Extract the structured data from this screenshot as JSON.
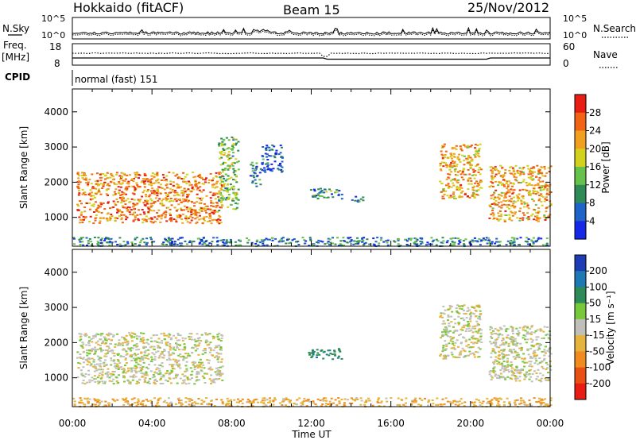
{
  "header": {
    "station": "Hokkaido (fitACF)",
    "beam": "Beam 15",
    "date": "25/Nov/2012"
  },
  "labels": {
    "nsky": "N.Sky",
    "nsearch": "N.Search",
    "freq": "Freq.",
    "mhz": "[MHz]",
    "nave": "Nave",
    "cpid": "CPID",
    "cpid_value": "normal (fast) 151"
  },
  "strip_ticks": {
    "noise_left": [
      "10^5",
      "10^0"
    ],
    "noise_right": [
      "10^5",
      "10^0"
    ],
    "freq_left": [
      "18",
      "8"
    ],
    "nave_right": [
      "60",
      "0"
    ]
  },
  "chart_data": [
    {
      "type": "heatmap",
      "panel": "power",
      "ylabel": "Slant Range [km]",
      "xlabel": "Time UT",
      "xticks": [
        "00:00",
        "04:00",
        "08:00",
        "12:00",
        "16:00",
        "20:00",
        "00:00"
      ],
      "xlim_hours": [
        0,
        24
      ],
      "yticks": [
        "1000",
        "2000",
        "3000",
        "4000"
      ],
      "ylim": [
        180,
        4650
      ],
      "colorbar": {
        "label": "Power [dB]",
        "ticks": [
          "4",
          "8",
          "12",
          "16",
          "20",
          "24",
          "28"
        ],
        "range": [
          0,
          32
        ],
        "colors": [
          "#1428e6",
          "#1e64c8",
          "#2e8b57",
          "#66c24a",
          "#d2d21e",
          "#f0a01e",
          "#f06414",
          "#e61e14"
        ]
      },
      "regions": [
        {
          "name": "evening-arc",
          "t": [
            0.2,
            7.5
          ],
          "r": [
            850,
            2300
          ],
          "level": 24
        },
        {
          "name": "late-evening-arc",
          "t": [
            7.3,
            8.3
          ],
          "r": [
            1200,
            3300
          ],
          "level": 14
        },
        {
          "name": "sporadic-a",
          "t": [
            8.9,
            9.4
          ],
          "r": [
            1900,
            2600
          ],
          "level": 8
        },
        {
          "name": "sporadic-b",
          "t": [
            9.4,
            10.5
          ],
          "r": [
            2300,
            3100
          ],
          "level": 6
        },
        {
          "name": "midnight-patch",
          "t": [
            11.8,
            13.5
          ],
          "r": [
            1550,
            1850
          ],
          "level": 10
        },
        {
          "name": "small-patch",
          "t": [
            14.0,
            14.6
          ],
          "r": [
            1450,
            1650
          ],
          "level": 10
        },
        {
          "name": "morning-v",
          "t": [
            18.4,
            20.5
          ],
          "r": [
            1550,
            3100
          ],
          "level": 22
        },
        {
          "name": "dawn-arc",
          "t": [
            20.9,
            24
          ],
          "r": [
            900,
            2500
          ],
          "level": 22
        },
        {
          "name": "near-range-scatter",
          "t": [
            0,
            24
          ],
          "r": [
            200,
            450
          ],
          "level": 8
        }
      ]
    },
    {
      "type": "heatmap",
      "panel": "velocity",
      "ylabel": "Slant Range [km]",
      "xlabel": "Time UT",
      "xticks": [
        "00:00",
        "04:00",
        "08:00",
        "12:00",
        "16:00",
        "20:00",
        "00:00"
      ],
      "xlim_hours": [
        0,
        24
      ],
      "yticks": [
        "1000",
        "2000",
        "3000",
        "4000"
      ],
      "ylim": [
        180,
        4650
      ],
      "colorbar": {
        "label": "Velocity [m s⁻¹]",
        "ticks": [
          "200",
          "100",
          "50",
          "15",
          "-15",
          "-50",
          "-100",
          "-200"
        ],
        "colors": [
          "#1e3cb4",
          "#1e78b4",
          "#2e8b57",
          "#78c83c",
          "#c0c0b8",
          "#e6b43c",
          "#f08c1e",
          "#e85014",
          "#e61e14"
        ]
      },
      "regions": [
        {
          "name": "evening-arc",
          "t": [
            0.2,
            7.5
          ],
          "r": [
            850,
            2300
          ],
          "level": 0
        },
        {
          "name": "midnight-patch",
          "t": [
            11.8,
            13.5
          ],
          "r": [
            1550,
            1850
          ],
          "level": 80
        },
        {
          "name": "morning-v",
          "t": [
            18.4,
            20.5
          ],
          "r": [
            1550,
            3100
          ],
          "level": 0
        },
        {
          "name": "dawn-arc",
          "t": [
            20.9,
            24
          ],
          "r": [
            900,
            2500
          ],
          "level": 0
        },
        {
          "name": "near-range-scatter",
          "t": [
            0,
            24
          ],
          "r": [
            200,
            450
          ],
          "level": -40
        }
      ]
    }
  ]
}
